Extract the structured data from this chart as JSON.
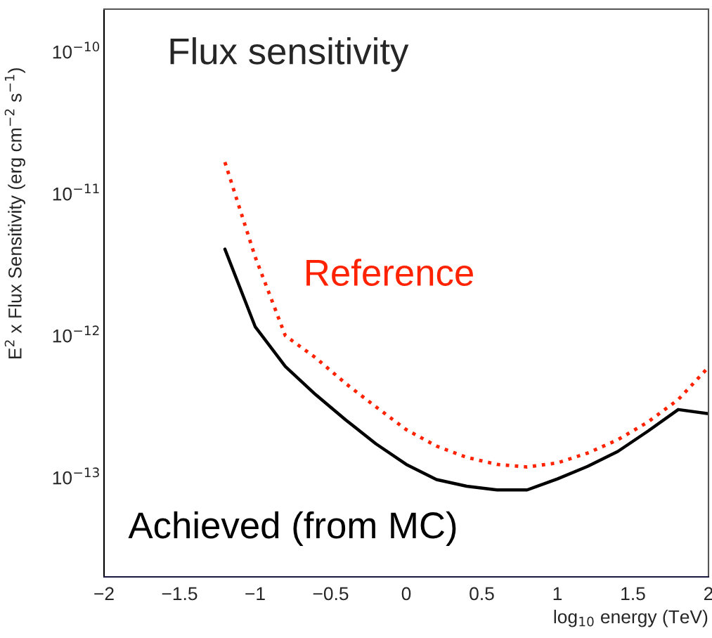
{
  "chart_data": {
    "type": "line",
    "title": "Flux sensitivity",
    "xlabel": "log$_{10}$ energy (TeV)",
    "ylabel": "E$^{2}$ x Flux Sensitivity (erg cm$^{−2}$ s$^{−1}$)",
    "x": [
      -1.2,
      -1.0,
      -0.8,
      -0.6,
      -0.4,
      -0.2,
      0.0,
      0.2,
      0.4,
      0.6,
      0.8,
      1.0,
      1.2,
      1.4,
      1.6,
      1.8,
      2.0
    ],
    "series": [
      {
        "name": "Reference",
        "color": "#ff2200",
        "line_style": "dotted",
        "values": [
          1.67e-11,
          3.6e-12,
          1e-12,
          7e-13,
          4.6e-13,
          3.15e-13,
          2.18e-13,
          1.67e-13,
          1.39e-13,
          1.24e-13,
          1.19e-13,
          1.27e-13,
          1.49e-13,
          1.85e-13,
          2.47e-13,
          3.55e-13,
          6e-13
        ]
      },
      {
        "name": "Achieved (from MC)",
        "color": "#000000",
        "line_style": "solid",
        "values": [
          4.07e-12,
          1.16e-12,
          6.07e-13,
          3.85e-13,
          2.55e-13,
          1.73e-13,
          1.24e-13,
          9.7e-14,
          8.7e-14,
          8.2e-14,
          8.2e-14,
          9.8e-14,
          1.2e-13,
          1.53e-13,
          2.13e-13,
          3.02e-13,
          2.82e-13
        ]
      }
    ],
    "log": "y",
    "grid": false,
    "legend": false,
    "xlim": [
      -2,
      2
    ],
    "xticks": [
      {
        "value": -2,
        "label": "−2"
      },
      {
        "value": -1.5,
        "label": "−1.5"
      },
      {
        "value": -1,
        "label": "−1"
      },
      {
        "value": -0.5,
        "label": "−0.5"
      },
      0,
      0.5,
      1,
      1.5,
      2
    ],
    "ylim": [
      2e-14,
      2e-10
    ],
    "yticks": [
      {
        "value": 1e-13,
        "label": "10$^{−13}$"
      },
      {
        "value": 1e-12,
        "label": "10$^{−12}$"
      },
      {
        "value": 1e-11,
        "label": "10$^{−11}$"
      },
      {
        "value": 1e-10,
        "label": "10$^{−10}$"
      }
    ]
  }
}
